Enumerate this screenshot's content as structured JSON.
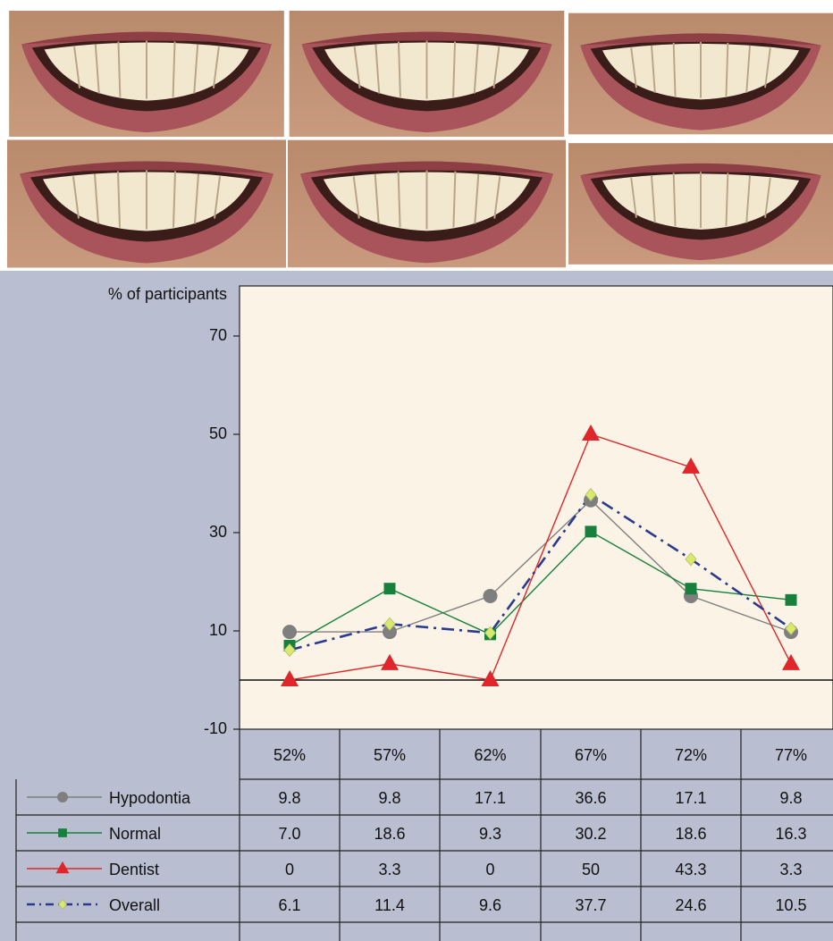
{
  "chart_data": {
    "type": "line",
    "y_label": "% of participants",
    "categories": [
      "52%",
      "57%",
      "62%",
      "67%",
      "72%",
      "77%"
    ],
    "series": [
      {
        "name": "Hypodontia",
        "color": "#7f7f7f",
        "marker": "circle",
        "line_style": "solid",
        "values": [
          9.8,
          9.8,
          17.1,
          36.6,
          17.1,
          9.8
        ]
      },
      {
        "name": "Normal",
        "color": "#17803d",
        "marker": "square",
        "line_style": "solid",
        "values": [
          7.0,
          18.6,
          9.3,
          30.2,
          18.6,
          16.3
        ],
        "value_labels": [
          "7.0",
          "18.6",
          "9.3",
          "30.2",
          "18.6",
          "16.3"
        ]
      },
      {
        "name": "Dentist",
        "color": "#e0262b",
        "marker": "triangle",
        "line_style": "solid",
        "values": [
          0,
          3.3,
          0,
          50,
          43.3,
          3.3
        ]
      },
      {
        "name": "Overall",
        "color": "#2a3a8f",
        "marker_color": "#d7ea6c",
        "marker": "diamond",
        "line_style": "dashdot",
        "values": [
          6.1,
          11.4,
          9.6,
          37.7,
          24.6,
          10.5
        ]
      }
    ],
    "ylim": [
      -10,
      80
    ],
    "yticks": [
      -10,
      10,
      30,
      50,
      70
    ],
    "zero_line": true
  }
}
